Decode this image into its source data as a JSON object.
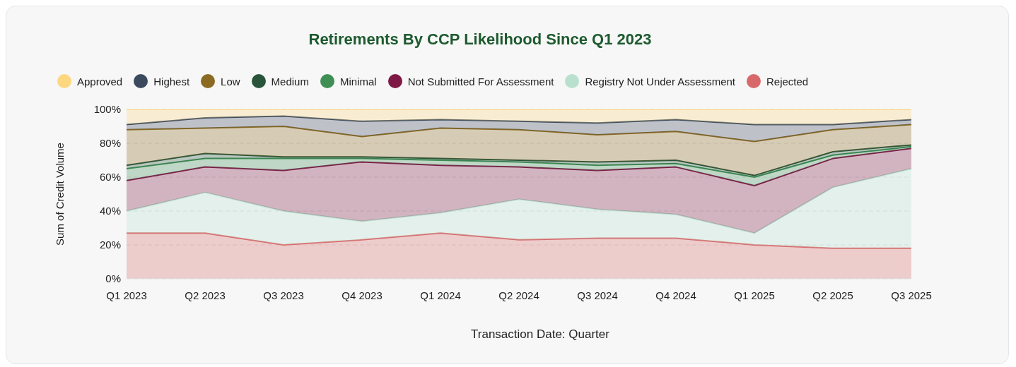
{
  "chart_data": {
    "type": "area",
    "title": "Retirements By CCP Likelihood Since Q1 2023",
    "xlabel": "Transaction Date: Quarter",
    "ylabel": "Sum of Credit Volume",
    "stacked": true,
    "categories": [
      "Q1 2023",
      "Q2 2023",
      "Q3 2023",
      "Q4 2023",
      "Q1 2024",
      "Q2 2024",
      "Q3 2024",
      "Q4 2024",
      "Q1 2025",
      "Q2 2025",
      "Q3 2025"
    ],
    "series": [
      {
        "name": "Rejected",
        "color": "#d8696a",
        "values": [
          27,
          27,
          20,
          23,
          27,
          23,
          24,
          24,
          20,
          18,
          18
        ]
      },
      {
        "name": "Registry Not Under Assessment",
        "color": "#b9e0cf",
        "values": [
          13,
          24,
          20,
          11,
          12,
          24,
          17,
          14,
          7,
          36,
          47
        ]
      },
      {
        "name": "Not Submitted For Assessment",
        "color": "#7e1946",
        "values": [
          18,
          15,
          24,
          35,
          28,
          19,
          23,
          28,
          28,
          17,
          12
        ]
      },
      {
        "name": "Minimal",
        "color": "#3f8f55",
        "values": [
          7,
          5,
          7,
          2,
          3,
          3,
          3,
          2,
          5,
          2,
          1
        ]
      },
      {
        "name": "Medium",
        "color": "#28553a",
        "values": [
          2,
          3,
          1,
          1,
          1,
          1,
          2,
          2,
          1,
          2,
          1
        ]
      },
      {
        "name": "Low",
        "color": "#8b6a22",
        "values": [
          21,
          15,
          18,
          12,
          18,
          18,
          16,
          17,
          20,
          13,
          12
        ]
      },
      {
        "name": "Highest",
        "color": "#3c4a5e",
        "values": [
          3,
          6,
          6,
          9,
          5,
          5,
          7,
          7,
          10,
          3,
          3
        ]
      },
      {
        "name": "Approved",
        "color": "#fcd77f",
        "values": [
          9,
          5,
          4,
          7,
          6,
          7,
          8,
          6,
          9,
          9,
          6
        ]
      }
    ],
    "ylim": [
      0,
      100
    ],
    "yticks": [
      {
        "value": 0,
        "label": "0%"
      },
      {
        "value": 20,
        "label": "20%"
      },
      {
        "value": 40,
        "label": "40%"
      },
      {
        "value": 60,
        "label": "60%"
      },
      {
        "value": 80,
        "label": "80%"
      },
      {
        "value": 100,
        "label": "100%"
      }
    ],
    "grid": "y",
    "legend": "top",
    "marker": "none",
    "line_style": "solid"
  }
}
